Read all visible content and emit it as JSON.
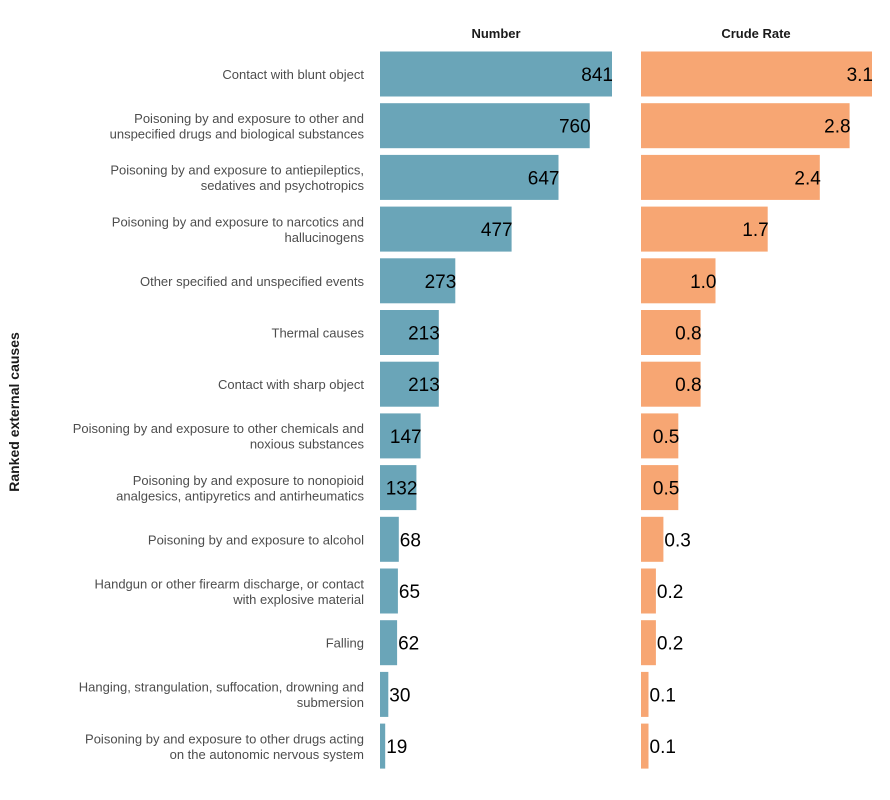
{
  "chart_data": {
    "type": "bar",
    "orientation": "horizontal",
    "ylabel": "Ranked external causes",
    "categories": [
      [
        "Contact with blunt object"
      ],
      [
        "Poisoning by and exposure to other and",
        "unspecified drugs and biological substances"
      ],
      [
        "Poisoning by and exposure to antiepileptics,",
        "sedatives and psychotropics"
      ],
      [
        "Poisoning by and exposure to narcotics and",
        "hallucinogens"
      ],
      [
        "Other specified and unspecified events"
      ],
      [
        "Thermal causes"
      ],
      [
        "Contact with sharp object"
      ],
      [
        "Poisoning by and exposure to other chemicals and",
        "noxious substances"
      ],
      [
        "Poisoning by and exposure to nonopioid",
        "analgesics, antipyretics and antirheumatics"
      ],
      [
        "Poisoning by and exposure to alcohol"
      ],
      [
        "Handgun or other firearm discharge, or contact",
        "with explosive material"
      ],
      [
        "Falling"
      ],
      [
        "Hanging, strangulation, suffocation, drowning and",
        "submersion"
      ],
      [
        "Poisoning by and exposure to other drugs acting",
        "on the autonomic nervous system"
      ]
    ],
    "panels": [
      {
        "title": "Number",
        "color": "#6aa5b8",
        "xlim": [
          0,
          841
        ],
        "values": [
          841,
          760,
          647,
          477,
          273,
          213,
          213,
          147,
          132,
          68,
          65,
          62,
          30,
          19
        ],
        "labels": [
          "841",
          "760",
          "647",
          "477",
          "273",
          "213",
          "213",
          "147",
          "132",
          "68",
          "65",
          "62",
          "30",
          "19"
        ]
      },
      {
        "title": "Crude Rate",
        "color": "#f7a673",
        "xlim": [
          0,
          3.1
        ],
        "values": [
          3.1,
          2.8,
          2.4,
          1.7,
          1.0,
          0.8,
          0.8,
          0.5,
          0.5,
          0.3,
          0.2,
          0.2,
          0.1,
          0.1
        ],
        "labels": [
          "3.1",
          "2.8",
          "2.4",
          "1.7",
          "1.0",
          "0.8",
          "0.8",
          "0.5",
          "0.5",
          "0.3",
          "0.2",
          "0.2",
          "0.1",
          "0.1"
        ]
      }
    ],
    "grid": false,
    "legend": "none"
  }
}
